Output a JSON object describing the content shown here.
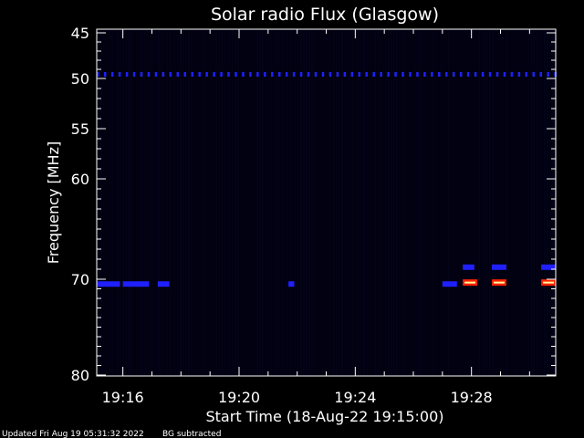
{
  "chart_data": {
    "type": "heatmap",
    "title": "Solar radio Flux (Glasgow)",
    "xlabel": "Start Time (18-Aug-22 19:15:00)",
    "ylabel": "Frequency [MHz]",
    "x_range_minutes": [
      19.25,
      19.5167
    ],
    "x_unit": "minutes after 19:00 on 18-Aug-22",
    "x_ticks": [
      {
        "label": "19:16",
        "value": 16
      },
      {
        "label": "19:20",
        "value": 20
      },
      {
        "label": "19:24",
        "value": 24
      },
      {
        "label": "19:28",
        "value": 28
      }
    ],
    "x_min_minutes": 15.1,
    "x_max_minutes": 30.9,
    "y_scale": "nonlinear (reciprocal-like, frequency decreasing downward)",
    "y_ticks": [
      {
        "label": "45",
        "value": 45
      },
      {
        "label": "50",
        "value": 50
      },
      {
        "label": "55",
        "value": 55
      },
      {
        "label": "60",
        "value": 60
      },
      {
        "label": "70",
        "value": 70
      },
      {
        "label": "80",
        "value": 80
      }
    ],
    "background_color": "#000010",
    "colors": {
      "low": "#0a0a3a",
      "mid": "#2020ff",
      "high": "#ff2000",
      "peak": "#ffffa0"
    },
    "grid": false,
    "features": [
      {
        "label": "dashed line near 49.5 MHz",
        "freq_mhz": 49.5,
        "t_start": 15.1,
        "t_end": 30.9,
        "intensity": "mid",
        "style": "dotted"
      },
      {
        "label": "band near 70 MHz",
        "freq_mhz": 70.5,
        "t_start": 15.1,
        "t_end": 15.9,
        "intensity": "mid"
      },
      {
        "label": "band near 70 MHz",
        "freq_mhz": 70.5,
        "t_start": 16.0,
        "t_end": 16.9,
        "intensity": "mid"
      },
      {
        "label": "band near 70 MHz",
        "freq_mhz": 70.5,
        "t_start": 17.2,
        "t_end": 17.6,
        "intensity": "mid"
      },
      {
        "label": "band near 70 MHz",
        "freq_mhz": 70.5,
        "t_start": 21.7,
        "t_end": 21.9,
        "intensity": "mid"
      },
      {
        "label": "band near 70 MHz",
        "freq_mhz": 70.5,
        "t_start": 27.0,
        "t_end": 27.5,
        "intensity": "mid"
      },
      {
        "label": "burst near 70 MHz",
        "freq_mhz": 70.3,
        "t_start": 27.7,
        "t_end": 28.2,
        "intensity": "high"
      },
      {
        "label": "burst near 70 MHz",
        "freq_mhz": 70.3,
        "t_start": 28.7,
        "t_end": 29.2,
        "intensity": "high"
      },
      {
        "label": "burst near 70 MHz",
        "freq_mhz": 70.3,
        "t_start": 30.4,
        "t_end": 30.9,
        "intensity": "high"
      },
      {
        "label": "band near 68.8 MHz",
        "freq_mhz": 68.8,
        "t_start": 27.7,
        "t_end": 28.1,
        "intensity": "mid"
      },
      {
        "label": "band near 68.8 MHz",
        "freq_mhz": 68.8,
        "t_start": 28.7,
        "t_end": 29.2,
        "intensity": "mid"
      },
      {
        "label": "band near 68.8 MHz",
        "freq_mhz": 68.8,
        "t_start": 30.4,
        "t_end": 30.9,
        "intensity": "mid"
      }
    ]
  },
  "footer": {
    "updated_text": "Updated Fri Aug 19 05:31:32 2022",
    "bg_text": "BG subtracted"
  }
}
